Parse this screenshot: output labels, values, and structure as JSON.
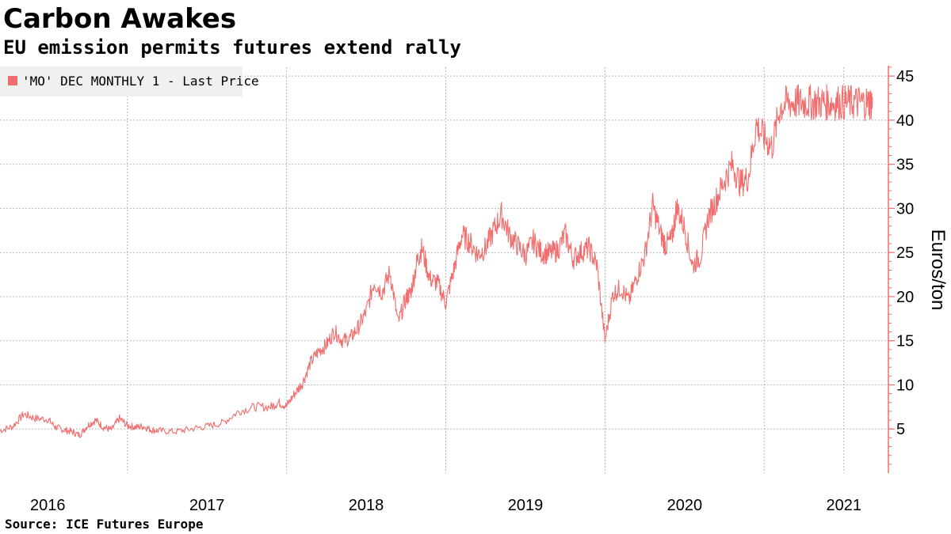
{
  "header": {
    "title": "Carbon Awakes",
    "subtitle": "EU emission permits futures extend rally"
  },
  "footer": {
    "source": "Source: ICE Futures Europe"
  },
  "colors": {
    "series": "#f26d6d",
    "axis": "#f26d6d",
    "grid": "#b8b8b8",
    "legend_bg": "#f0f0f0"
  },
  "chart_data": {
    "type": "line",
    "title": "Carbon Awakes",
    "subtitle": "EU emission permits futures extend rally",
    "xlabel": "",
    "ylabel": "Euros/ton",
    "ylim": [
      0,
      46
    ],
    "xlim": [
      2015.7,
      2021.28
    ],
    "y_ticks": [
      5,
      10,
      15,
      20,
      25,
      30,
      35,
      40,
      45
    ],
    "y_tick_labels": [
      "5",
      "10",
      "15",
      "20",
      "25",
      "30",
      "35",
      "40",
      "45"
    ],
    "x_ticks": [
      {
        "label": "2016",
        "x": 2016.0
      },
      {
        "label": "2017",
        "x": 2017.0
      },
      {
        "label": "2018",
        "x": 2018.0
      },
      {
        "label": "2019",
        "x": 2019.0
      },
      {
        "label": "2020",
        "x": 2020.0
      },
      {
        "label": "2021",
        "x": 2021.0
      }
    ],
    "x_grid": [
      2016.5,
      2017.5,
      2018.5,
      2019.5,
      2020.5,
      2021.0
    ],
    "grid": true,
    "legend": {
      "position": "top-left",
      "entries": [
        "'MO' DEC MONTHLY 1 - Last Price"
      ]
    },
    "y_axis_position": "right",
    "series": [
      {
        "name": "'MO' DEC MONTHLY 1 - Last Price",
        "x": [
          2015.7,
          2015.78,
          2015.85,
          2015.92,
          2016.0,
          2016.05,
          2016.1,
          2016.15,
          2016.2,
          2016.25,
          2016.3,
          2016.35,
          2016.4,
          2016.45,
          2016.5,
          2016.55,
          2016.6,
          2016.65,
          2016.7,
          2016.8,
          2016.9,
          2017.0,
          2017.1,
          2017.2,
          2017.3,
          2017.4,
          2017.45,
          2017.5,
          2017.55,
          2017.6,
          2017.65,
          2017.7,
          2017.75,
          2017.8,
          2017.85,
          2017.9,
          2017.95,
          2018.0,
          2018.05,
          2018.1,
          2018.15,
          2018.2,
          2018.25,
          2018.28,
          2018.32,
          2018.35,
          2018.4,
          2018.45,
          2018.5,
          2018.55,
          2018.6,
          2018.65,
          2018.7,
          2018.75,
          2018.8,
          2018.85,
          2018.9,
          2018.95,
          2019.0,
          2019.05,
          2019.1,
          2019.15,
          2019.2,
          2019.25,
          2019.3,
          2019.35,
          2019.4,
          2019.45,
          2019.5,
          2019.55,
          2019.6,
          2019.65,
          2019.7,
          2019.75,
          2019.8,
          2019.85,
          2019.88,
          2019.92,
          2019.95,
          2020.0,
          2020.05,
          2020.1,
          2020.15,
          2020.2,
          2020.25,
          2020.3,
          2020.35,
          2020.4,
          2020.45,
          2020.5,
          2020.55,
          2020.6,
          2020.65,
          2020.7,
          2020.75,
          2020.8,
          2020.85,
          2020.9,
          2020.95,
          2021.0,
          2021.05,
          2021.1,
          2021.15,
          2021.18,
          2021.2
        ],
        "values": [
          4.8,
          5.3,
          6.7,
          6.2,
          6.1,
          5.2,
          4.9,
          4.7,
          4.3,
          5.4,
          6.0,
          5.2,
          4.9,
          6.2,
          5.4,
          5.2,
          5.3,
          4.9,
          4.8,
          4.7,
          5.0,
          5.3,
          5.7,
          7.0,
          7.5,
          7.5,
          8.0,
          7.6,
          9.0,
          10.2,
          12.5,
          13.8,
          14.5,
          16.1,
          15.0,
          15.3,
          16.5,
          18.3,
          21.7,
          20.5,
          22.8,
          17.0,
          19.8,
          20.5,
          24.0,
          25.5,
          22.0,
          21.5,
          19.3,
          23.0,
          27.0,
          26.2,
          24.8,
          25.5,
          27.5,
          29.3,
          27.0,
          25.8,
          24.7,
          26.3,
          25.0,
          24.9,
          25.2,
          27.1,
          24.3,
          25.1,
          25.5,
          23.5,
          15.0,
          20.3,
          21.0,
          19.5,
          22.3,
          24.7,
          30.3,
          27.1,
          25.8,
          26.5,
          30.2,
          27.8,
          23.5,
          24.6,
          29.1,
          31.0,
          33.2,
          35.0,
          32.8,
          33.5,
          39.5,
          38.0,
          37.0,
          41.5,
          42.0,
          42.0,
          42.0,
          42.0,
          42.0,
          42.0,
          42.0,
          42.0,
          42.0,
          42.0,
          42.0,
          42.0,
          42.0
        ]
      }
    ]
  }
}
